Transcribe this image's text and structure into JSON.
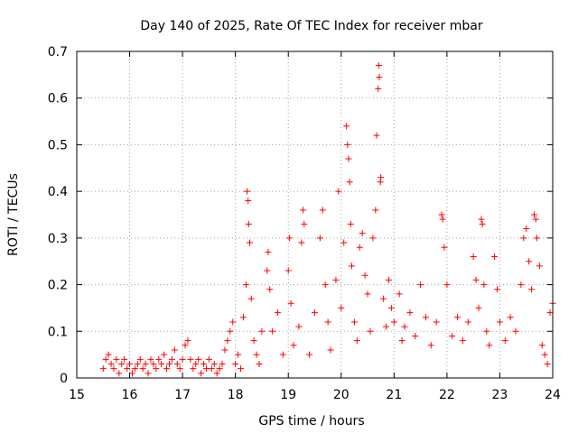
{
  "chart_data": {
    "type": "scatter",
    "title": "Day 140 of 2025, Rate Of TEC Index for receiver mbar",
    "xlabel": "GPS time / hours",
    "ylabel": "ROTI / TECUs",
    "xlim": [
      15,
      24
    ],
    "ylim": [
      0,
      0.7
    ],
    "xticks": [
      "15",
      "16",
      "17",
      "18",
      "19",
      "20",
      "21",
      "22",
      "23",
      "24"
    ],
    "yticks": [
      "0",
      "0.1",
      "0.2",
      "0.3",
      "0.4",
      "0.5",
      "0.6",
      "0.7"
    ],
    "grid": true,
    "marker": "+",
    "series_color": "#ff0000",
    "points": [
      [
        15.5,
        0.02
      ],
      [
        15.55,
        0.04
      ],
      [
        15.6,
        0.05
      ],
      [
        15.65,
        0.03
      ],
      [
        15.7,
        0.02
      ],
      [
        15.75,
        0.04
      ],
      [
        15.8,
        0.01
      ],
      [
        15.85,
        0.03
      ],
      [
        15.9,
        0.04
      ],
      [
        15.95,
        0.02
      ],
      [
        16.0,
        0.03
      ],
      [
        16.05,
        0.01
      ],
      [
        16.1,
        0.02
      ],
      [
        16.15,
        0.03
      ],
      [
        16.2,
        0.04
      ],
      [
        16.25,
        0.02
      ],
      [
        16.3,
        0.03
      ],
      [
        16.35,
        0.01
      ],
      [
        16.4,
        0.04
      ],
      [
        16.45,
        0.03
      ],
      [
        16.5,
        0.02
      ],
      [
        16.55,
        0.04
      ],
      [
        16.6,
        0.03
      ],
      [
        16.65,
        0.05
      ],
      [
        16.7,
        0.02
      ],
      [
        16.75,
        0.03
      ],
      [
        16.8,
        0.04
      ],
      [
        16.85,
        0.06
      ],
      [
        16.9,
        0.03
      ],
      [
        16.95,
        0.02
      ],
      [
        17.0,
        0.04
      ],
      [
        17.05,
        0.07
      ],
      [
        17.1,
        0.08
      ],
      [
        17.15,
        0.04
      ],
      [
        17.2,
        0.02
      ],
      [
        17.25,
        0.03
      ],
      [
        17.3,
        0.04
      ],
      [
        17.35,
        0.01
      ],
      [
        17.4,
        0.03
      ],
      [
        17.45,
        0.02
      ],
      [
        17.5,
        0.04
      ],
      [
        17.55,
        0.02
      ],
      [
        17.6,
        0.03
      ],
      [
        17.65,
        0.01
      ],
      [
        17.7,
        0.02
      ],
      [
        17.75,
        0.03
      ],
      [
        17.8,
        0.06
      ],
      [
        17.85,
        0.08
      ],
      [
        17.9,
        0.1
      ],
      [
        17.95,
        0.12
      ],
      [
        18.0,
        0.03
      ],
      [
        18.05,
        0.05
      ],
      [
        18.1,
        0.02
      ],
      [
        18.15,
        0.13
      ],
      [
        18.2,
        0.2
      ],
      [
        18.22,
        0.4
      ],
      [
        18.24,
        0.38
      ],
      [
        18.25,
        0.33
      ],
      [
        18.27,
        0.29
      ],
      [
        18.3,
        0.17
      ],
      [
        18.35,
        0.08
      ],
      [
        18.4,
        0.05
      ],
      [
        18.45,
        0.03
      ],
      [
        18.5,
        0.1
      ],
      [
        18.6,
        0.23
      ],
      [
        18.62,
        0.27
      ],
      [
        18.65,
        0.19
      ],
      [
        18.7,
        0.1
      ],
      [
        18.8,
        0.14
      ],
      [
        18.9,
        0.05
      ],
      [
        19.0,
        0.23
      ],
      [
        19.02,
        0.3
      ],
      [
        19.05,
        0.16
      ],
      [
        19.1,
        0.07
      ],
      [
        19.2,
        0.11
      ],
      [
        19.25,
        0.29
      ],
      [
        19.28,
        0.36
      ],
      [
        19.3,
        0.33
      ],
      [
        19.4,
        0.05
      ],
      [
        19.5,
        0.14
      ],
      [
        19.6,
        0.3
      ],
      [
        19.65,
        0.36
      ],
      [
        19.7,
        0.2
      ],
      [
        19.75,
        0.12
      ],
      [
        19.8,
        0.06
      ],
      [
        19.9,
        0.21
      ],
      [
        19.95,
        0.4
      ],
      [
        20.0,
        0.15
      ],
      [
        20.05,
        0.29
      ],
      [
        20.1,
        0.54
      ],
      [
        20.12,
        0.5
      ],
      [
        20.14,
        0.47
      ],
      [
        20.16,
        0.42
      ],
      [
        20.18,
        0.33
      ],
      [
        20.2,
        0.24
      ],
      [
        20.25,
        0.12
      ],
      [
        20.3,
        0.08
      ],
      [
        20.35,
        0.28
      ],
      [
        20.4,
        0.31
      ],
      [
        20.45,
        0.22
      ],
      [
        20.5,
        0.18
      ],
      [
        20.55,
        0.1
      ],
      [
        20.6,
        0.3
      ],
      [
        20.65,
        0.36
      ],
      [
        20.67,
        0.52
      ],
      [
        20.7,
        0.62
      ],
      [
        20.71,
        0.67
      ],
      [
        20.72,
        0.645
      ],
      [
        20.74,
        0.42
      ],
      [
        20.75,
        0.43
      ],
      [
        20.8,
        0.17
      ],
      [
        20.85,
        0.11
      ],
      [
        20.9,
        0.21
      ],
      [
        20.95,
        0.15
      ],
      [
        21.0,
        0.12
      ],
      [
        21.1,
        0.18
      ],
      [
        21.15,
        0.08
      ],
      [
        21.2,
        0.11
      ],
      [
        21.3,
        0.14
      ],
      [
        21.4,
        0.09
      ],
      [
        21.5,
        0.2
      ],
      [
        21.6,
        0.13
      ],
      [
        21.7,
        0.07
      ],
      [
        21.8,
        0.12
      ],
      [
        21.9,
        0.35
      ],
      [
        21.92,
        0.34
      ],
      [
        21.95,
        0.28
      ],
      [
        22.0,
        0.2
      ],
      [
        22.1,
        0.09
      ],
      [
        22.2,
        0.13
      ],
      [
        22.3,
        0.08
      ],
      [
        22.4,
        0.12
      ],
      [
        22.5,
        0.26
      ],
      [
        22.55,
        0.21
      ],
      [
        22.6,
        0.15
      ],
      [
        22.65,
        0.34
      ],
      [
        22.67,
        0.33
      ],
      [
        22.7,
        0.2
      ],
      [
        22.75,
        0.1
      ],
      [
        22.8,
        0.07
      ],
      [
        22.9,
        0.26
      ],
      [
        22.95,
        0.19
      ],
      [
        23.0,
        0.12
      ],
      [
        23.1,
        0.08
      ],
      [
        23.2,
        0.13
      ],
      [
        23.3,
        0.1
      ],
      [
        23.4,
        0.2
      ],
      [
        23.45,
        0.3
      ],
      [
        23.5,
        0.32
      ],
      [
        23.55,
        0.25
      ],
      [
        23.6,
        0.19
      ],
      [
        23.65,
        0.35
      ],
      [
        23.68,
        0.34
      ],
      [
        23.7,
        0.3
      ],
      [
        23.75,
        0.24
      ],
      [
        23.8,
        0.07
      ],
      [
        23.85,
        0.05
      ],
      [
        23.9,
        0.03
      ],
      [
        23.95,
        0.14
      ],
      [
        24.0,
        0.16
      ]
    ]
  }
}
